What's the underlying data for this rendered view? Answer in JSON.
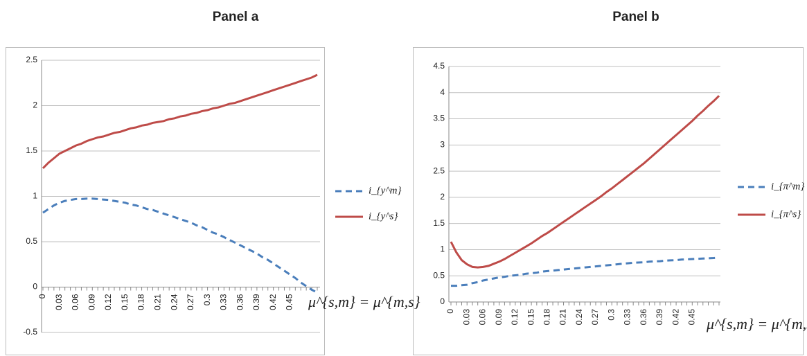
{
  "chart_data": [
    {
      "type": "line",
      "title": "Panel  a",
      "x_label": "μ^{s,m} = μ^{m,s}",
      "legend": "right",
      "grid": true,
      "categories": [
        "0",
        null,
        null,
        "0.03",
        null,
        null,
        "0.06",
        null,
        null,
        "0.09",
        null,
        null,
        "0.12",
        null,
        null,
        "0.15",
        null,
        null,
        "0.18",
        null,
        null,
        "0.21",
        null,
        null,
        "0.24",
        null,
        null,
        "0.27",
        null,
        null,
        "0.3",
        null,
        null,
        "0.33",
        null,
        null,
        "0.36",
        null,
        null,
        "0.39",
        null,
        null,
        "0.42",
        null,
        null,
        "0.45",
        null,
        null,
        null,
        null,
        null
      ],
      "ylim": [
        -0.5,
        2.5
      ],
      "yticks": [
        -0.5,
        0,
        0.5,
        1,
        1.5,
        2,
        2.5
      ],
      "series": [
        {
          "name": "i_{y^m}",
          "color": "#4a7ebb",
          "dashed": true,
          "values": [
            0.82,
            0.86,
            0.9,
            0.93,
            0.95,
            0.96,
            0.97,
            0.97,
            0.975,
            0.975,
            0.97,
            0.965,
            0.96,
            0.95,
            0.94,
            0.93,
            0.91,
            0.9,
            0.88,
            0.86,
            0.85,
            0.83,
            0.81,
            0.79,
            0.77,
            0.75,
            0.73,
            0.71,
            0.68,
            0.66,
            0.63,
            0.6,
            0.58,
            0.55,
            0.52,
            0.49,
            0.46,
            0.43,
            0.4,
            0.37,
            0.33,
            0.3,
            0.26,
            0.22,
            0.18,
            0.14,
            0.1,
            0.05,
            0.01,
            -0.03,
            -0.06
          ]
        },
        {
          "name": "i_{y^s}",
          "color": "#be4b48",
          "dashed": false,
          "values": [
            1.31,
            1.37,
            1.42,
            1.47,
            1.5,
            1.53,
            1.56,
            1.58,
            1.61,
            1.63,
            1.65,
            1.66,
            1.68,
            1.7,
            1.71,
            1.73,
            1.75,
            1.76,
            1.78,
            1.79,
            1.81,
            1.82,
            1.83,
            1.85,
            1.86,
            1.88,
            1.89,
            1.91,
            1.92,
            1.94,
            1.95,
            1.97,
            1.98,
            2.0,
            2.02,
            2.03,
            2.05,
            2.07,
            2.09,
            2.11,
            2.13,
            2.15,
            2.17,
            2.19,
            2.21,
            2.23,
            2.25,
            2.27,
            2.29,
            2.31,
            2.34
          ]
        }
      ]
    },
    {
      "type": "line",
      "title": "Panel b",
      "x_label": "μ^{s,m} = μ^{m,s}",
      "legend": "right",
      "grid": true,
      "categories": [
        "0",
        null,
        null,
        "0.03",
        null,
        null,
        "0.06",
        null,
        null,
        "0.09",
        null,
        null,
        "0.12",
        null,
        null,
        "0.15",
        null,
        null,
        "0.18",
        null,
        null,
        "0.21",
        null,
        null,
        "0.24",
        null,
        null,
        "0.27",
        null,
        null,
        "0.3",
        null,
        null,
        "0.33",
        null,
        null,
        "0.36",
        null,
        null,
        "0.39",
        null,
        null,
        "0.42",
        null,
        null,
        "0.45",
        null,
        null,
        null,
        null,
        null
      ],
      "ylim": [
        0,
        4.5
      ],
      "yticks": [
        0,
        0.5,
        1,
        1.5,
        2,
        2.5,
        3,
        3.5,
        4,
        4.5
      ],
      "series": [
        {
          "name": "i_{π^m}",
          "color": "#4a7ebb",
          "dashed": true,
          "values": [
            0.31,
            0.31,
            0.32,
            0.33,
            0.36,
            0.38,
            0.41,
            0.43,
            0.45,
            0.47,
            0.48,
            0.5,
            0.51,
            0.52,
            0.54,
            0.55,
            0.56,
            0.58,
            0.59,
            0.6,
            0.61,
            0.62,
            0.63,
            0.64,
            0.65,
            0.66,
            0.67,
            0.68,
            0.69,
            0.7,
            0.71,
            0.72,
            0.73,
            0.74,
            0.75,
            0.755,
            0.76,
            0.77,
            0.775,
            0.78,
            0.79,
            0.795,
            0.8,
            0.81,
            0.815,
            0.82,
            0.825,
            0.83,
            0.835,
            0.84,
            0.85
          ]
        },
        {
          "name": "i_{π^s}",
          "color": "#be4b48",
          "dashed": false,
          "values": [
            1.15,
            0.95,
            0.8,
            0.72,
            0.67,
            0.66,
            0.67,
            0.69,
            0.73,
            0.77,
            0.82,
            0.88,
            0.94,
            1.0,
            1.06,
            1.12,
            1.19,
            1.26,
            1.32,
            1.39,
            1.46,
            1.53,
            1.6,
            1.67,
            1.74,
            1.81,
            1.88,
            1.95,
            2.02,
            2.1,
            2.17,
            2.25,
            2.33,
            2.41,
            2.49,
            2.57,
            2.65,
            2.74,
            2.83,
            2.92,
            3.01,
            3.1,
            3.19,
            3.28,
            3.37,
            3.46,
            3.56,
            3.65,
            3.75,
            3.84,
            3.94
          ]
        }
      ]
    }
  ]
}
